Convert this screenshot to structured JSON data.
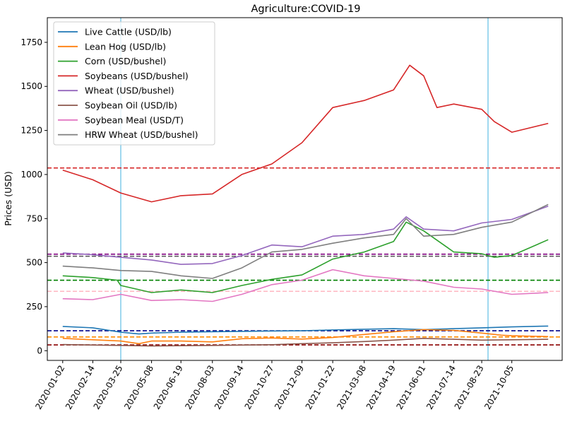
{
  "chart_data": {
    "type": "line",
    "title": "Agriculture:COVID-19",
    "xlabel": "",
    "ylabel": "Prices (USD)",
    "ylim": [
      -55,
      1890
    ],
    "xlim": [
      "2019-12-11",
      "2021-12-16"
    ],
    "yticks": [
      0,
      250,
      500,
      750,
      1000,
      1250,
      1500,
      1750
    ],
    "xticks": [
      "2020-01-02",
      "2020-02-14",
      "2020-03-25",
      "2020-05-08",
      "2020-06-19",
      "2020-08-03",
      "2020-09-14",
      "2020-10-27",
      "2020-12-09",
      "2021-01-22",
      "2021-03-08",
      "2021-04-19",
      "2021-06-01",
      "2021-07-14",
      "2021-08-23",
      "2021-10-05"
    ],
    "grid": false,
    "legend_position": "top-left",
    "vertical_lines": [
      {
        "x": "2020-03-25",
        "color": "#87ceeb"
      },
      {
        "x": "2021-09-01",
        "color": "#87ceeb"
      }
    ],
    "horizontal_lines": [
      {
        "y": 1037,
        "color": "#d62728"
      },
      {
        "y": 548,
        "color": "#800080"
      },
      {
        "y": 536,
        "color": "#555555"
      },
      {
        "y": 400,
        "color": "#008000"
      },
      {
        "y": 337,
        "color": "#ffb6c1"
      },
      {
        "y": 113,
        "color": "#00008b"
      },
      {
        "y": 78,
        "color": "#ff8c00"
      },
      {
        "y": 33,
        "color": "#8b0000"
      }
    ],
    "series": [
      {
        "name": "Live Cattle (USD/lb)",
        "color": "#1f77b4",
        "points": [
          [
            "2020-01-02",
            138
          ],
          [
            "2020-02-14",
            130
          ],
          [
            "2020-03-25",
            105
          ],
          [
            "2020-04-20",
            95
          ],
          [
            "2020-05-08",
            100
          ],
          [
            "2020-06-19",
            105
          ],
          [
            "2020-08-03",
            108
          ],
          [
            "2020-09-14",
            110
          ],
          [
            "2020-10-27",
            112
          ],
          [
            "2020-12-09",
            113
          ],
          [
            "2021-01-22",
            118
          ],
          [
            "2021-03-08",
            122
          ],
          [
            "2021-04-19",
            125
          ],
          [
            "2021-06-01",
            120
          ],
          [
            "2021-07-14",
            125
          ],
          [
            "2021-08-23",
            130
          ],
          [
            "2021-10-05",
            135
          ],
          [
            "2021-11-26",
            140
          ]
        ]
      },
      {
        "name": "Lean Hog (USD/lb)",
        "color": "#ff7f0e",
        "points": [
          [
            "2020-01-02",
            70
          ],
          [
            "2020-02-14",
            62
          ],
          [
            "2020-03-25",
            55
          ],
          [
            "2020-04-20",
            40
          ],
          [
            "2020-05-08",
            55
          ],
          [
            "2020-06-19",
            55
          ],
          [
            "2020-08-03",
            50
          ],
          [
            "2020-09-14",
            68
          ],
          [
            "2020-10-27",
            72
          ],
          [
            "2020-12-09",
            66
          ],
          [
            "2021-01-22",
            75
          ],
          [
            "2021-03-08",
            92
          ],
          [
            "2021-04-19",
            108
          ],
          [
            "2021-06-01",
            120
          ],
          [
            "2021-07-14",
            115
          ],
          [
            "2021-08-23",
            100
          ],
          [
            "2021-09-20",
            88
          ],
          [
            "2021-10-05",
            85
          ],
          [
            "2021-11-26",
            80
          ]
        ]
      },
      {
        "name": "Corn (USD/bushel)",
        "color": "#2ca02c",
        "points": [
          [
            "2020-01-02",
            425
          ],
          [
            "2020-02-14",
            415
          ],
          [
            "2020-03-20",
            400
          ],
          [
            "2020-03-25",
            370
          ],
          [
            "2020-05-08",
            330
          ],
          [
            "2020-06-19",
            345
          ],
          [
            "2020-08-03",
            330
          ],
          [
            "2020-09-14",
            370
          ],
          [
            "2020-10-27",
            405
          ],
          [
            "2020-12-09",
            430
          ],
          [
            "2021-01-22",
            520
          ],
          [
            "2021-03-08",
            560
          ],
          [
            "2021-04-19",
            620
          ],
          [
            "2021-05-07",
            730
          ],
          [
            "2021-06-01",
            680
          ],
          [
            "2021-07-14",
            560
          ],
          [
            "2021-08-23",
            550
          ],
          [
            "2021-09-10",
            530
          ],
          [
            "2021-10-05",
            540
          ],
          [
            "2021-11-26",
            630
          ]
        ]
      },
      {
        "name": "Soybeans (USD/bushel)",
        "color": "#d62728",
        "points": [
          [
            "2020-01-02",
            1025
          ],
          [
            "2020-02-14",
            970
          ],
          [
            "2020-03-25",
            895
          ],
          [
            "2020-05-08",
            845
          ],
          [
            "2020-06-19",
            880
          ],
          [
            "2020-08-03",
            890
          ],
          [
            "2020-09-14",
            1000
          ],
          [
            "2020-10-27",
            1060
          ],
          [
            "2020-12-09",
            1180
          ],
          [
            "2021-01-22",
            1380
          ],
          [
            "2021-03-08",
            1420
          ],
          [
            "2021-04-19",
            1480
          ],
          [
            "2021-05-12",
            1620
          ],
          [
            "2021-06-01",
            1560
          ],
          [
            "2021-06-20",
            1380
          ],
          [
            "2021-07-14",
            1400
          ],
          [
            "2021-08-23",
            1370
          ],
          [
            "2021-09-10",
            1300
          ],
          [
            "2021-10-05",
            1240
          ],
          [
            "2021-11-26",
            1290
          ]
        ]
      },
      {
        "name": "Wheat (USD/bushel)",
        "color": "#9467bd",
        "points": [
          [
            "2020-01-02",
            555
          ],
          [
            "2020-02-14",
            545
          ],
          [
            "2020-03-25",
            530
          ],
          [
            "2020-05-08",
            515
          ],
          [
            "2020-06-19",
            490
          ],
          [
            "2020-08-03",
            495
          ],
          [
            "2020-09-14",
            540
          ],
          [
            "2020-10-27",
            600
          ],
          [
            "2020-12-09",
            590
          ],
          [
            "2021-01-22",
            650
          ],
          [
            "2021-03-08",
            660
          ],
          [
            "2021-04-19",
            690
          ],
          [
            "2021-05-07",
            760
          ],
          [
            "2021-06-01",
            690
          ],
          [
            "2021-07-14",
            680
          ],
          [
            "2021-08-23",
            725
          ],
          [
            "2021-10-05",
            745
          ],
          [
            "2021-11-26",
            820
          ]
        ]
      },
      {
        "name": "Soybean Oil (USD/lb)",
        "color": "#8c564b",
        "points": [
          [
            "2020-01-02",
            35
          ],
          [
            "2020-03-25",
            30
          ],
          [
            "2020-05-08",
            27
          ],
          [
            "2020-08-03",
            30
          ],
          [
            "2020-10-27",
            34
          ],
          [
            "2020-12-09",
            40
          ],
          [
            "2021-01-22",
            45
          ],
          [
            "2021-03-08",
            52
          ],
          [
            "2021-04-19",
            60
          ],
          [
            "2021-06-01",
            70
          ],
          [
            "2021-07-14",
            65
          ],
          [
            "2021-08-23",
            60
          ],
          [
            "2021-10-05",
            62
          ],
          [
            "2021-11-26",
            65
          ]
        ]
      },
      {
        "name": "Soybean Meal (USD/T)",
        "color": "#e377c2",
        "points": [
          [
            "2020-01-02",
            295
          ],
          [
            "2020-02-14",
            290
          ],
          [
            "2020-03-25",
            320
          ],
          [
            "2020-05-08",
            285
          ],
          [
            "2020-06-19",
            290
          ],
          [
            "2020-08-03",
            280
          ],
          [
            "2020-09-14",
            320
          ],
          [
            "2020-10-27",
            375
          ],
          [
            "2020-12-09",
            400
          ],
          [
            "2021-01-22",
            460
          ],
          [
            "2021-03-08",
            425
          ],
          [
            "2021-04-19",
            410
          ],
          [
            "2021-06-01",
            395
          ],
          [
            "2021-07-14",
            360
          ],
          [
            "2021-08-23",
            350
          ],
          [
            "2021-10-05",
            320
          ],
          [
            "2021-11-26",
            330
          ]
        ]
      },
      {
        "name": "HRW Wheat (USD/bushel)",
        "color": "#7f7f7f",
        "points": [
          [
            "2020-01-02",
            480
          ],
          [
            "2020-02-14",
            470
          ],
          [
            "2020-03-25",
            455
          ],
          [
            "2020-05-08",
            450
          ],
          [
            "2020-06-19",
            425
          ],
          [
            "2020-08-03",
            410
          ],
          [
            "2020-09-14",
            470
          ],
          [
            "2020-10-27",
            560
          ],
          [
            "2020-12-09",
            575
          ],
          [
            "2021-01-22",
            610
          ],
          [
            "2021-03-08",
            640
          ],
          [
            "2021-04-19",
            660
          ],
          [
            "2021-05-07",
            750
          ],
          [
            "2021-06-01",
            650
          ],
          [
            "2021-07-14",
            660
          ],
          [
            "2021-08-23",
            700
          ],
          [
            "2021-10-05",
            730
          ],
          [
            "2021-11-26",
            830
          ]
        ]
      }
    ]
  }
}
